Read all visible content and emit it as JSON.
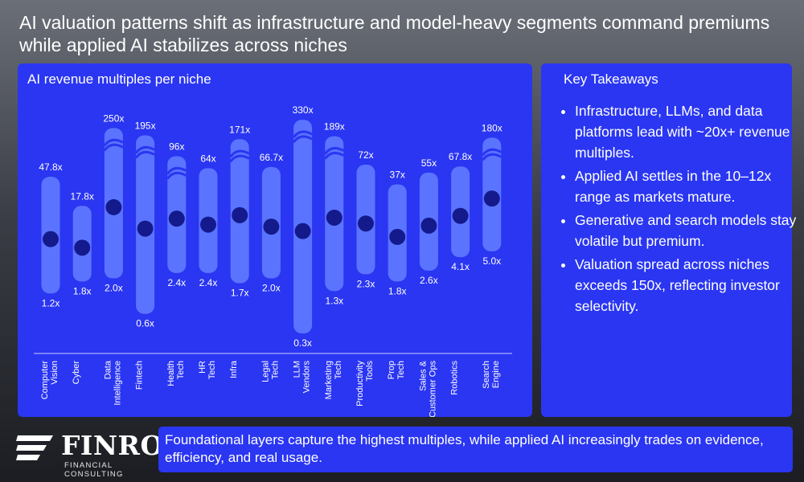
{
  "headline": "AI valuation patterns shift as infrastructure and model-heavy segments command premiums while applied AI stabilizes across niches",
  "colors": {
    "panel": "#2a36f2",
    "bar": "#5b74ff",
    "dot": "#141a8c",
    "axis": "#c9cfff"
  },
  "chart_data": {
    "type": "range",
    "title": "AI revenue multiples per niche",
    "break_symbol_categories": [
      "Data Intelligence",
      "Fintech",
      "Health Tech",
      "Infra",
      "LLM Vendors",
      "Marketing Tech",
      "Search Engine"
    ],
    "categories": [
      "Computer Vision",
      "Cyber",
      "Data Intelligence",
      "Fintech",
      "Health Tech",
      "HR Tech",
      "Infra",
      "Legal Tech",
      "LLM Vendors",
      "Marketing Tech",
      "Productivity Tools",
      "Prop Tech",
      "Sales & Customer Ops",
      "Robotics",
      "Search Engine"
    ],
    "series": [
      {
        "name": "max",
        "values": [
          47.8,
          17.8,
          250,
          195,
          96,
          64,
          171,
          66.7,
          330,
          189,
          72,
          37,
          55,
          67.8,
          180
        ],
        "labels": [
          "47.8x",
          "17.8x",
          "250x",
          "195x",
          "96x",
          "64x",
          "171x",
          "66.7x",
          "330x",
          "189x",
          "72x",
          "37x",
          "55x",
          "67.8x",
          "180x"
        ]
      },
      {
        "name": "min",
        "values": [
          1.2,
          1.8,
          2.0,
          0.6,
          2.4,
          2.4,
          1.7,
          2.0,
          0.3,
          1.3,
          2.3,
          1.8,
          2.6,
          4.1,
          5.0
        ],
        "labels": [
          "1.2x",
          "1.8x",
          "2.0x",
          "0.6x",
          "2.4x",
          "2.4x",
          "1.7x",
          "2.0x",
          "0.3x",
          "1.3x",
          "2.3x",
          "1.8x",
          "2.6x",
          "4.1x",
          "5.0x"
        ]
      }
    ]
  },
  "takeaways": {
    "title": "Key Takeaways",
    "items": [
      "Infrastructure, LLMs, and data platforms lead with ~20x+ revenue multiples.",
      "Applied AI settles in the 10–12x range as markets mature.",
      "Generative and search models stay volatile but premium.",
      "Valuation spread across niches exceeds 150x, reflecting investor selectivity."
    ]
  },
  "logo": {
    "name": "FINRO",
    "tagline": "FINANCIAL CONSULTING"
  },
  "footer": "Foundational layers capture the highest multiples, while applied AI increasingly trades on evidence, efficiency, and real usage."
}
